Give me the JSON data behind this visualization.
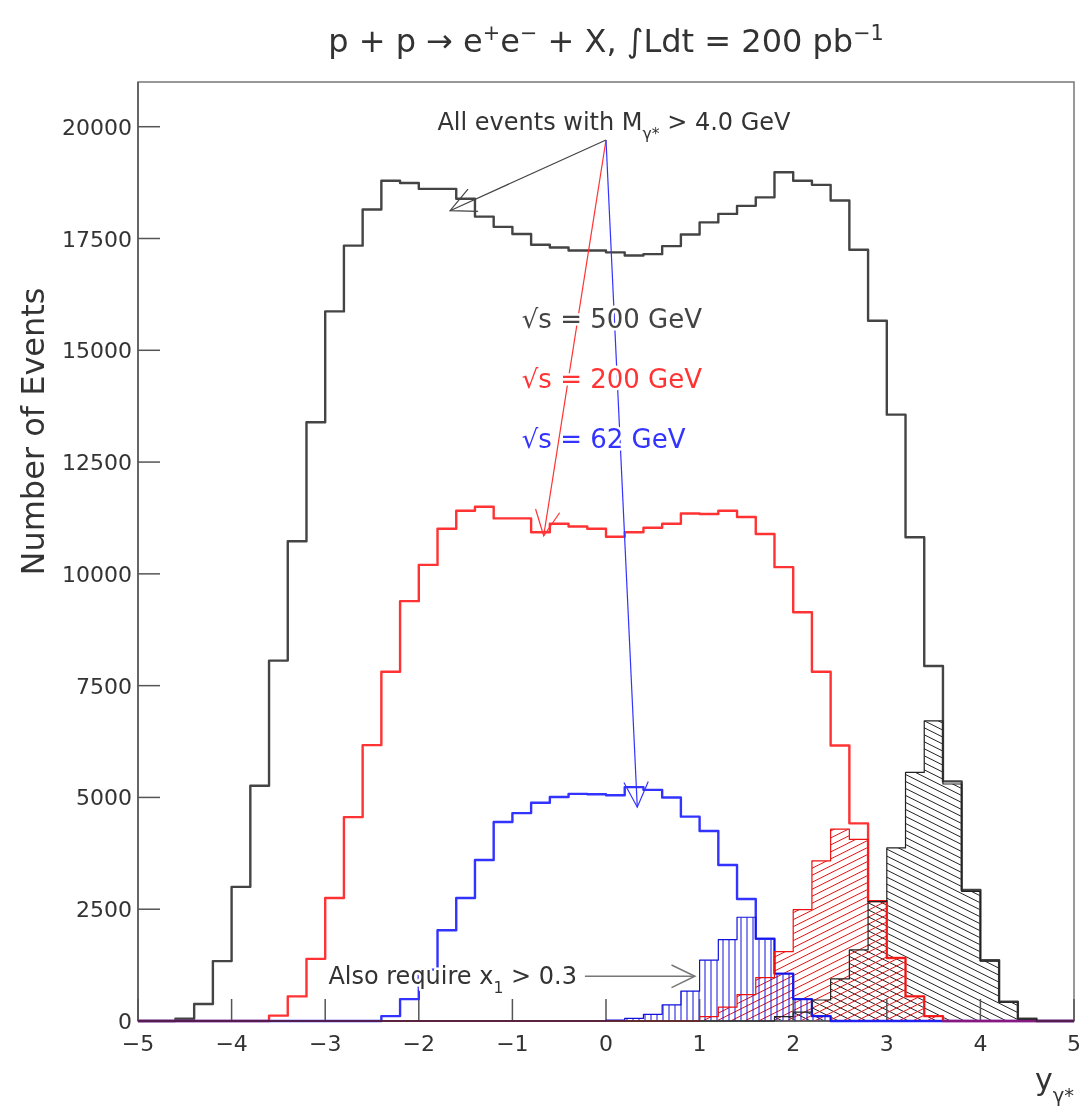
{
  "chart_data": {
    "type": "histogram",
    "title": "p + p → e$^{+}$e$^{−}$ + X, ∫Ldt = 200 pb$^{−1}$",
    "xlabel": "y$_{γ*}$",
    "ylabel": "Number of Events",
    "bins": [
      -5,
      -4.8,
      -4.6,
      -4.4,
      -4.2,
      -4,
      -3.8,
      -3.6,
      -3.4,
      -3.2,
      -3,
      -2.8,
      -2.6,
      -2.4,
      -2.2,
      -2,
      -1.8,
      -1.6,
      -1.4,
      -1.2,
      -1,
      -0.8,
      -0.6,
      -0.4,
      -0.2,
      0,
      0.2,
      0.4,
      0.6,
      0.8,
      1,
      1.2,
      1.4,
      1.6,
      1.8,
      2,
      2.2,
      2.4,
      2.6,
      2.8,
      3,
      3.2,
      3.4,
      3.6,
      3.8,
      4,
      4.2,
      4.4,
      4.6,
      4.8,
      5
    ],
    "series": [
      {
        "name": "√s = 500 GeV",
        "color": "#444444",
        "values": [
          0,
          0,
          50,
          380,
          1340,
          3000,
          5260,
          8060,
          10730,
          13390,
          15870,
          17340,
          18150,
          18790,
          18740,
          18610,
          18610,
          18390,
          17990,
          17760,
          17600,
          17360,
          17300,
          17230,
          17230,
          17190,
          17120,
          17150,
          17330,
          17590,
          17860,
          18050,
          18230,
          18420,
          18980,
          18790,
          18700,
          18350,
          17250,
          15660,
          13560,
          10820,
          7940,
          5360,
          2930,
          1360,
          430,
          50,
          0,
          0
        ]
      },
      {
        "name": "√s = 200 GeV",
        "color": "#ff3333",
        "values": [
          0,
          0,
          0,
          0,
          0,
          0,
          0,
          120,
          550,
          1390,
          2750,
          4560,
          6170,
          7810,
          9390,
          10200,
          11010,
          11410,
          11500,
          11240,
          11240,
          10930,
          11120,
          11060,
          11010,
          10830,
          10930,
          11030,
          11120,
          11350,
          11340,
          11410,
          11270,
          10890,
          10150,
          9140,
          7810,
          6160,
          4420,
          2680,
          1410,
          550,
          110,
          0,
          0,
          0,
          0,
          0,
          0,
          0
        ]
      },
      {
        "name": "√s = 62 GeV",
        "color": "#3333ff",
        "values": [
          0,
          0,
          0,
          0,
          0,
          0,
          0,
          0,
          0,
          0,
          0,
          0,
          0,
          110,
          490,
          1150,
          2030,
          2750,
          3600,
          4450,
          4650,
          4880,
          5010,
          5080,
          5070,
          5050,
          5230,
          5170,
          5000,
          4570,
          4250,
          3490,
          2730,
          1840,
          1060,
          490,
          110,
          0,
          0,
          0,
          0,
          0,
          0,
          0,
          0,
          0,
          0,
          0,
          0,
          0
        ]
      },
      {
        "color": "#222222",
        "values": [
          0,
          0,
          0,
          0,
          0,
          0,
          0,
          0,
          0,
          0,
          0,
          0,
          0,
          0,
          0,
          0,
          0,
          0,
          0,
          0,
          0,
          0,
          0,
          0,
          0,
          0,
          0,
          0,
          0,
          0,
          0,
          0,
          0,
          0,
          100,
          200,
          470,
          940,
          1590,
          2670,
          3870,
          5560,
          6710,
          5300,
          2900,
          1340,
          420,
          40,
          0,
          0
        ]
      },
      {
        "color": "#ee1111",
        "values": [
          0,
          0,
          0,
          0,
          0,
          0,
          0,
          0,
          0,
          0,
          0,
          0,
          0,
          0,
          0,
          0,
          0,
          0,
          0,
          0,
          0,
          0,
          0,
          0,
          0,
          0,
          0,
          0,
          0,
          0,
          100,
          310,
          590,
          970,
          1550,
          2490,
          3580,
          4290,
          4060,
          2690,
          1410,
          550,
          110,
          0,
          0,
          0,
          0,
          0,
          0,
          0
        ]
      },
      {
        "color": "#1111dd",
        "values": [
          0,
          0,
          0,
          0,
          0,
          0,
          0,
          0,
          0,
          0,
          0,
          0,
          0,
          0,
          0,
          0,
          0,
          0,
          0,
          0,
          0,
          0,
          0,
          0,
          0,
          20,
          60,
          150,
          360,
          670,
          1360,
          1820,
          2320,
          1840,
          1060,
          490,
          110,
          0,
          0,
          0,
          0,
          0,
          0,
          0,
          0,
          0,
          0,
          0,
          0,
          0
        ]
      }
    ],
    "xlim": [
      -5,
      5
    ],
    "ylim": [
      0,
      21000
    ],
    "xticks": [
      -5,
      -4,
      -3,
      -2,
      -1,
      0,
      1,
      2,
      3,
      4,
      5
    ],
    "yticks": [
      0,
      2500,
      5000,
      7500,
      10000,
      12500,
      15000,
      17500,
      20000
    ],
    "grid": false,
    "legend": "top",
    "annotations": [
      "All events with M$_{γ*}$ > 4.0 GeV",
      {
        "text": "Also require x$_{1}$ > 0.3",
        "x": 0.95,
        "y": 1000
      }
    ]
  }
}
